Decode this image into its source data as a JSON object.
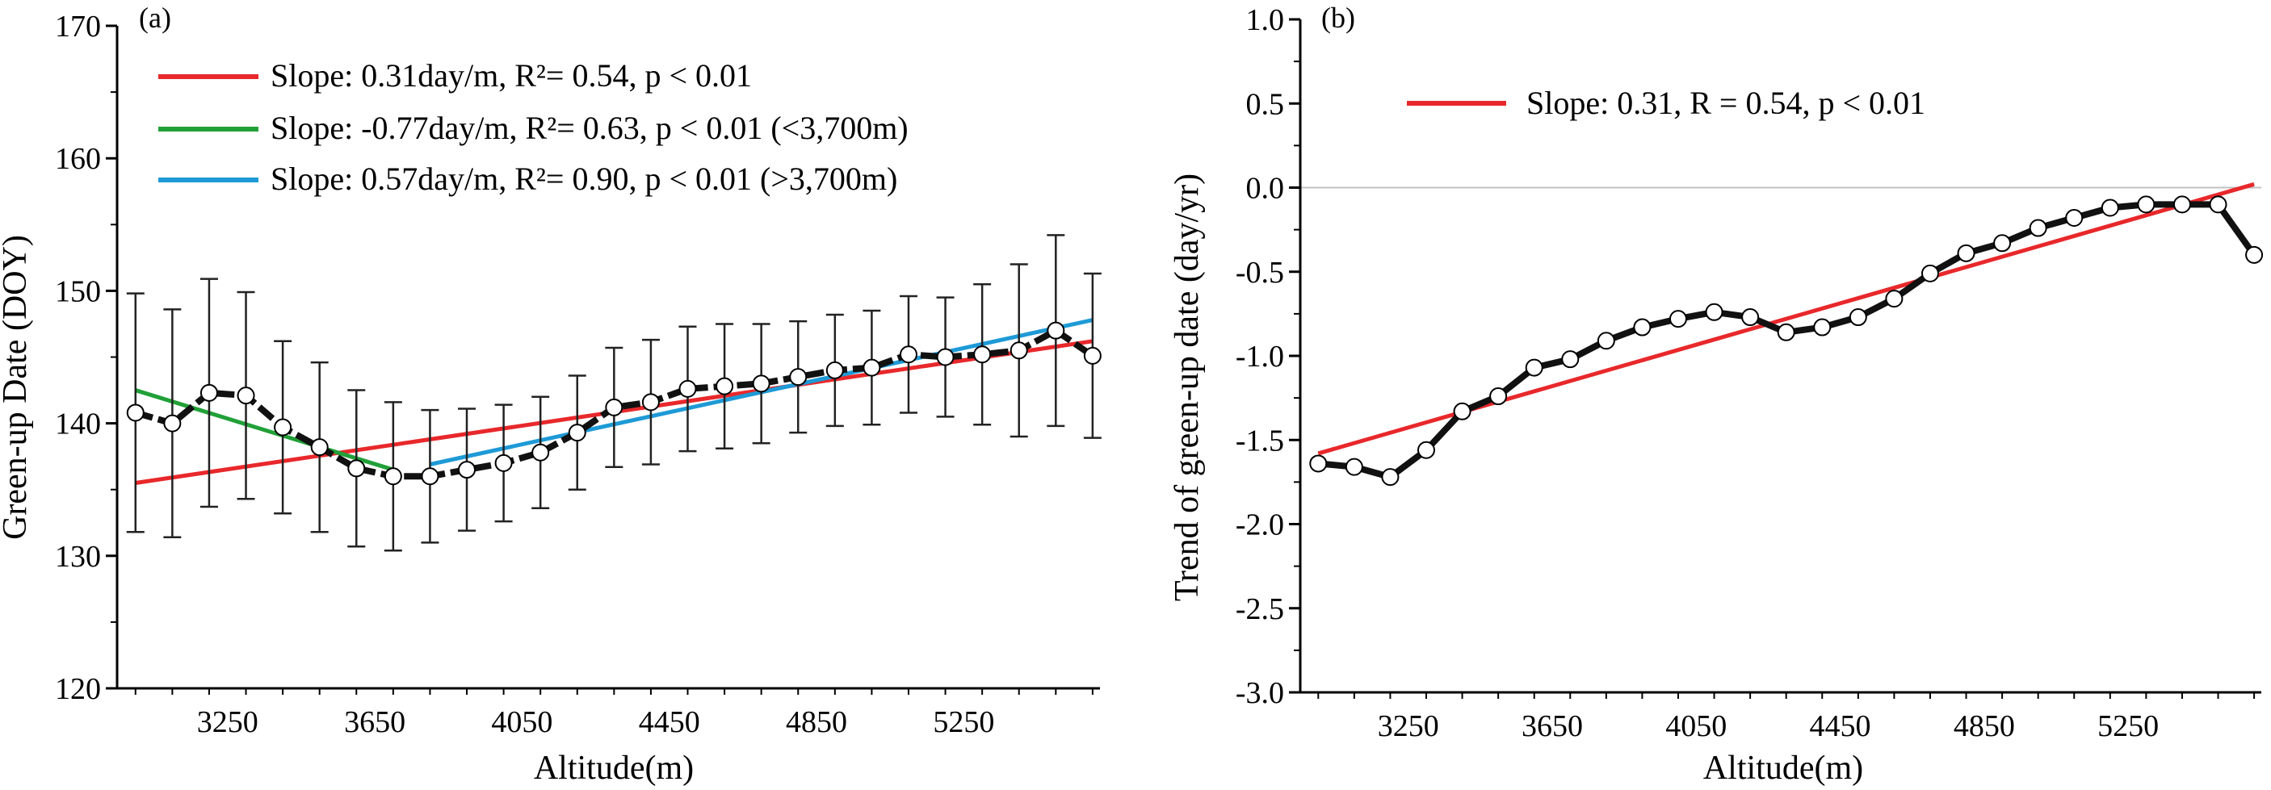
{
  "colors": {
    "axis": "#000000",
    "mean_line": "#111111",
    "marker_fill": "#ffffff",
    "error_bar": "#222222",
    "fit_all": "#e8282b",
    "fit_low": "#21a038",
    "fit_high": "#1e9ad6",
    "zero_line": "#c0c0c0"
  },
  "icons": {
    "data_marker": "open-circle-marker"
  },
  "chart_data": [
    {
      "panel_label": "(a)",
      "type": "line",
      "xlabel": "Altitude(m)",
      "ylabel": "Green-up Date (DOY)",
      "xlim": [
        2950,
        5620
      ],
      "ylim": [
        120,
        170
      ],
      "xticks": [
        3250,
        3650,
        4050,
        4450,
        4850,
        5250
      ],
      "xtick_labels": [
        "3250",
        "3650",
        "4050",
        "4450",
        "4850",
        "5250"
      ],
      "yticks": [
        120,
        130,
        140,
        150,
        160,
        170
      ],
      "ytick_labels": [
        "120",
        "130",
        "140",
        "150",
        "160",
        "170"
      ],
      "series": [
        {
          "name": "Mean green-up date",
          "x": [
            3000,
            3100,
            3200,
            3300,
            3400,
            3500,
            3600,
            3700,
            3800,
            3900,
            4000,
            4100,
            4200,
            4300,
            4400,
            4500,
            4600,
            4700,
            4800,
            4900,
            5000,
            5100,
            5200,
            5300,
            5400,
            5500,
            5600
          ],
          "values": [
            140.8,
            140.0,
            142.3,
            142.1,
            139.7,
            138.2,
            136.6,
            136.0,
            136.0,
            136.5,
            137.0,
            137.8,
            139.3,
            141.2,
            141.6,
            142.6,
            142.8,
            143.0,
            143.5,
            144.0,
            144.2,
            145.2,
            145.0,
            145.2,
            145.5,
            147.0,
            145.1
          ],
          "error": [
            9.0,
            8.6,
            8.6,
            7.8,
            6.5,
            6.4,
            5.9,
            5.6,
            5.0,
            4.6,
            4.4,
            4.2,
            4.3,
            4.5,
            4.7,
            4.7,
            4.7,
            4.5,
            4.2,
            4.2,
            4.3,
            4.4,
            4.5,
            5.3,
            6.5,
            7.2,
            6.2
          ]
        }
      ],
      "fits": [
        {
          "name": "all",
          "legend": "Slope: 0.31day/m, R²= 0.54, p < 0.01",
          "x": [
            3000,
            5600
          ],
          "y": [
            135.5,
            146.2
          ]
        },
        {
          "name": "low",
          "legend": "Slope: -0.77day/m, R²= 0.63, p < 0.01 (<3,700m)",
          "x": [
            3000,
            3700
          ],
          "y": [
            142.5,
            136.5
          ]
        },
        {
          "name": "high",
          "legend": "Slope: 0.57day/m, R²= 0.90, p < 0.01 (>3,700m)",
          "x": [
            3800,
            5600
          ],
          "y": [
            136.9,
            147.8
          ]
        }
      ],
      "legend_position": "top-left"
    },
    {
      "panel_label": "(b)",
      "type": "line",
      "xlabel": "Altitude(m)",
      "ylabel": "Trend of green-up date (day/yr)",
      "xlim": [
        2950,
        5620
      ],
      "ylim": [
        -3.0,
        1.0
      ],
      "xticks": [
        3250,
        3650,
        4050,
        4450,
        4850,
        5250
      ],
      "xtick_labels": [
        "3250",
        "3650",
        "4050",
        "4450",
        "4850",
        "5250"
      ],
      "yticks": [
        -3.0,
        -2.5,
        -2.0,
        -1.5,
        -1.0,
        -0.5,
        0.0,
        0.5,
        1.0
      ],
      "ytick_labels": [
        "-3.0",
        "-2.5",
        "-2.0",
        "-1.5",
        "-1.0",
        "-0.5",
        "0.0",
        "0.5",
        "1.0"
      ],
      "series": [
        {
          "name": "Trend of green-up date",
          "x": [
            3000,
            3100,
            3200,
            3300,
            3400,
            3500,
            3600,
            3700,
            3800,
            3900,
            4000,
            4100,
            4200,
            4300,
            4400,
            4500,
            4600,
            4700,
            4800,
            4900,
            5000,
            5100,
            5200,
            5300,
            5400,
            5500,
            5600
          ],
          "values": [
            -1.64,
            -1.66,
            -1.72,
            -1.56,
            -1.33,
            -1.24,
            -1.07,
            -1.02,
            -0.91,
            -0.83,
            -0.78,
            -0.74,
            -0.77,
            -0.86,
            -0.83,
            -0.77,
            -0.66,
            -0.51,
            -0.39,
            -0.33,
            -0.24,
            -0.18,
            -0.12,
            -0.1,
            -0.1,
            -0.1,
            -0.4
          ]
        }
      ],
      "fits": [
        {
          "name": "all",
          "legend": "Slope: 0.31, R = 0.54, p < 0.01",
          "x": [
            3000,
            5600
          ],
          "y": [
            -1.58,
            0.02
          ]
        }
      ],
      "zero_line": 0.0,
      "legend_position": "top-left"
    }
  ]
}
